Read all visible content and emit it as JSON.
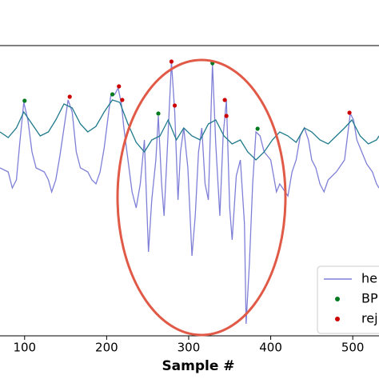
{
  "chart_data": {
    "type": "line",
    "xlabel": "Sample #",
    "xlim": [
      70,
      532
    ],
    "xticks": [
      100,
      200,
      300,
      400,
      500
    ],
    "ylim": [
      0,
      363
    ],
    "series": [
      {
        "name": "he",
        "type": "line",
        "color": "#7f7fd8",
        "x": [
          70,
          80,
          85,
          90,
          94,
          99,
          104,
          109,
          114,
          124,
          129,
          133,
          138,
          143,
          153,
          158,
          163,
          168,
          177,
          182,
          187,
          192,
          197,
          205,
          210,
          214,
          218,
          221,
          226,
          231,
          236,
          241,
          246,
          249,
          251,
          255,
          260,
          263,
          267,
          270,
          275,
          279,
          283,
          287,
          290,
          294,
          299,
          304,
          308,
          312,
          316,
          320,
          324,
          329,
          333,
          338,
          342,
          346,
          350,
          353,
          358,
          363,
          368,
          370,
          374,
          378,
          382,
          387,
          392,
          400,
          407,
          411,
          421,
          426,
          431,
          436,
          441,
          446,
          450,
          455,
          460,
          465,
          470,
          480,
          490,
          497,
          501,
          505,
          511,
          517,
          524,
          529,
          532
        ],
        "values": [
          210,
          205,
          185,
          195,
          240,
          292,
          270,
          230,
          210,
          205,
          195,
          180,
          195,
          225,
          295,
          280,
          230,
          210,
          205,
          195,
          190,
          205,
          235,
          300,
          302,
          310,
          290,
          260,
          220,
          180,
          160,
          190,
          245,
          160,
          105,
          170,
          220,
          275,
          190,
          150,
          255,
          342,
          280,
          170,
          230,
          260,
          210,
          100,
          150,
          230,
          260,
          190,
          170,
          340,
          240,
          150,
          250,
          295,
          160,
          120,
          200,
          220,
          140,
          15,
          90,
          190,
          255,
          250,
          230,
          220,
          180,
          190,
          175,
          205,
          220,
          250,
          260,
          245,
          220,
          210,
          190,
          180,
          195,
          205,
          220,
          278,
          270,
          245,
          230,
          215,
          205,
          190,
          185
        ]
      },
      {
        "type": "line",
        "color": "#1f7a8c",
        "x": [
          70,
          80,
          90,
          99,
          109,
          119,
          129,
          138,
          148,
          158,
          168,
          177,
          187,
          197,
          207,
          216,
          226,
          236,
          246,
          255,
          265,
          275,
          285,
          294,
          304,
          314,
          324,
          333,
          343,
          353,
          363,
          372,
          382,
          392,
          402,
          411,
          421,
          431,
          441,
          450,
          460,
          470,
          480,
          490,
          499,
          509,
          519,
          529,
          532
        ],
        "values": [
          255,
          248,
          260,
          280,
          265,
          250,
          255,
          270,
          290,
          285,
          265,
          255,
          262,
          280,
          295,
          292,
          265,
          242,
          230,
          245,
          250,
          270,
          245,
          260,
          250,
          245,
          265,
          270,
          250,
          240,
          245,
          230,
          220,
          230,
          245,
          255,
          250,
          242,
          260,
          255,
          245,
          240,
          250,
          260,
          270,
          250,
          240,
          245,
          250
        ]
      },
      {
        "name": "BP",
        "type": "scatter",
        "color": "#007a1f",
        "x": [
          100,
          207,
          263,
          329,
          384
        ],
        "values": [
          294,
          302,
          278,
          341,
          259
        ]
      },
      {
        "name": "rej",
        "type": "scatter",
        "color": "#cc0000",
        "x": [
          155,
          215,
          219,
          279,
          283,
          344,
          346,
          496
        ],
        "values": [
          299,
          312,
          295,
          343,
          288,
          295,
          275,
          279
        ]
      }
    ]
  }
}
